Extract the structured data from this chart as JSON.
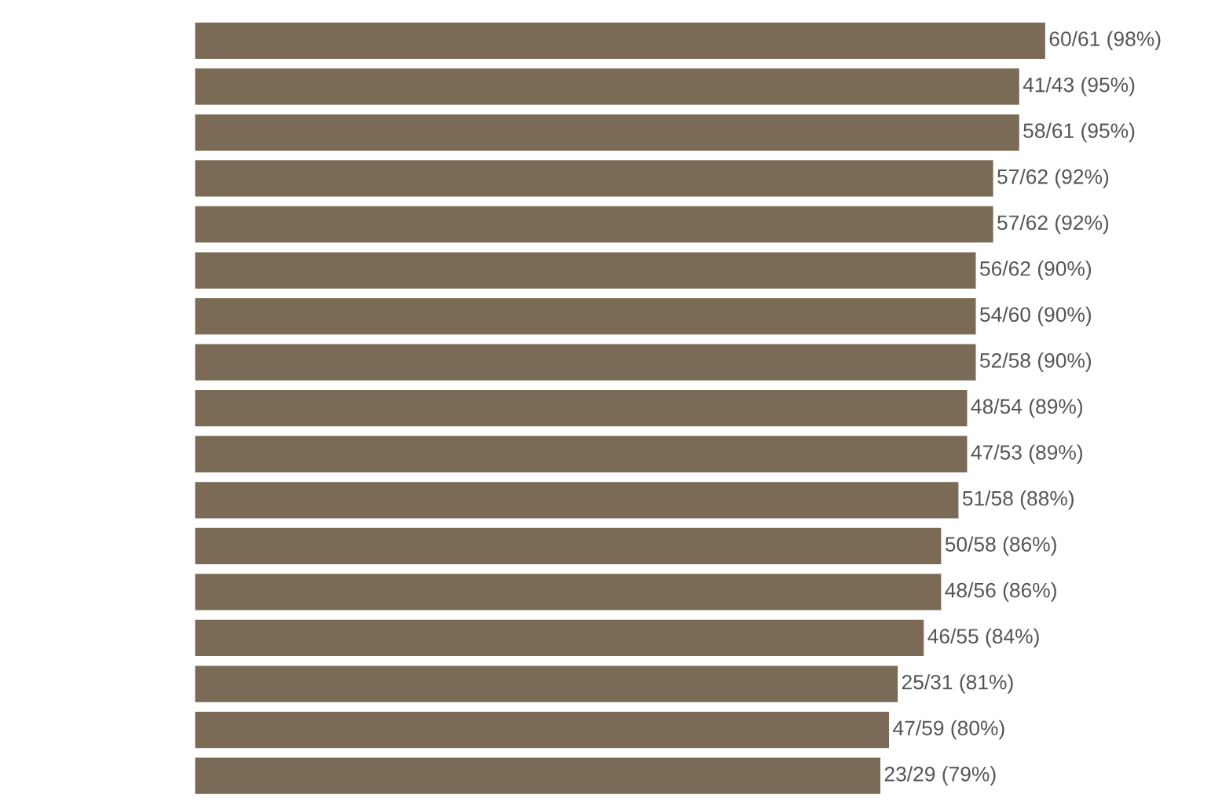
{
  "chart_data": {
    "type": "bar",
    "orientation": "horizontal",
    "categories": [
      null,
      null,
      null,
      null,
      null,
      null,
      null,
      null,
      null,
      null,
      null,
      null,
      null,
      null,
      null,
      null,
      null
    ],
    "values": [
      98,
      95,
      95,
      92,
      92,
      90,
      90,
      90,
      89,
      89,
      88,
      86,
      86,
      84,
      81,
      80,
      79
    ],
    "value_labels": [
      "60/61 (98%)",
      "41/43 (95%)",
      "58/61 (95%)",
      "57/62 (92%)",
      "57/62 (92%)",
      "56/62 (90%)",
      "54/60 (90%)",
      "52/58 (90%)",
      "48/54 (89%)",
      "47/53 (89%)",
      "51/58 (88%)",
      "50/58 (86%)",
      "48/56 (86%)",
      "46/55 (84%)",
      "25/31 (81%)",
      "47/59 (80%)",
      "23/29 (79%)"
    ],
    "color": "#7b6a55",
    "grid": false,
    "legend": false
  }
}
